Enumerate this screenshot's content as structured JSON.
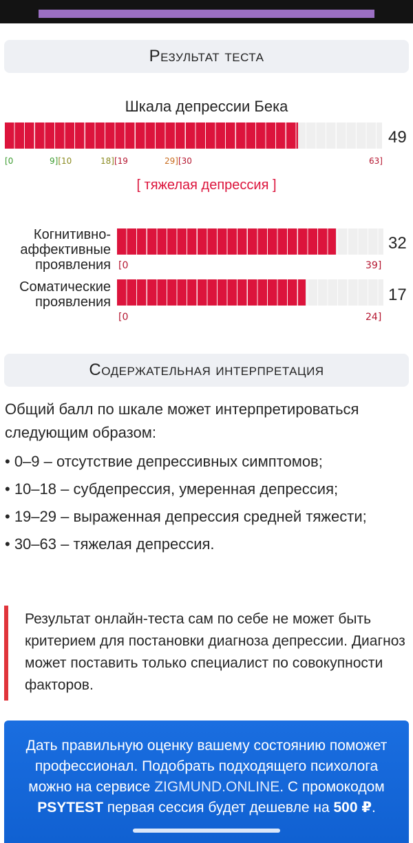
{
  "colors": {
    "fill": "#dc143c",
    "empty": "#efefef",
    "tick_green": "#3b9b2f",
    "tick_olive": "#8a8a1f",
    "tick_orange": "#c86b1d",
    "tick_red": "#b4142e",
    "promo_bg": "#1a6ee0"
  },
  "result": {
    "heading": "Результат теста",
    "scale_title": "Шкала депрессии Бека",
    "score": "49",
    "max": 63,
    "ticks": [
      "[0",
      "9][10",
      "18][19",
      "29][30",
      "63]"
    ],
    "severity": "[ тяжелая депрессия ]"
  },
  "subscales": [
    {
      "label_lines": [
        "Когнитивно-",
        "аффективные",
        "проявления"
      ],
      "score": "32",
      "value": 32,
      "max": 39,
      "tick_min": "[0",
      "tick_max": "39]"
    },
    {
      "label_lines": [
        "Соматические",
        "проявления"
      ],
      "score": "17",
      "value": 17,
      "max": 24,
      "tick_min": "[0",
      "tick_max": "24]"
    }
  ],
  "interpretation": {
    "heading": "Содержательная интерпретация",
    "intro": "Общий балл по шкале может интерпретироваться следующим образом:",
    "items": [
      "• 0–9 – отсутствие депрессивных симптомов;",
      "• 10–18 – субдепрессия, умеренная депрессия;",
      "• 19–29 – выраженная депрессия средней тяжести;",
      "• 30–63 – тяжелая депрессия."
    ]
  },
  "note": "Результат онлайн-теста сам по себе не может быть критерием для постановки диагноза депрессии. Диагноз может поставить только специалист по совокупности факторов.",
  "promo": {
    "text_before": "Дать правильную оценку вашему состоянию поможет профессионал. Подобрать подходящего психолога можно на сервисе ",
    "link": "ZIGMUND.ONLINE",
    "text_mid": ". С промокодом ",
    "promo_code": "PSYTEST",
    "text_after": " первая сессия будет дешевле на ",
    "discount": "500 ₽",
    "text_end": "."
  }
}
